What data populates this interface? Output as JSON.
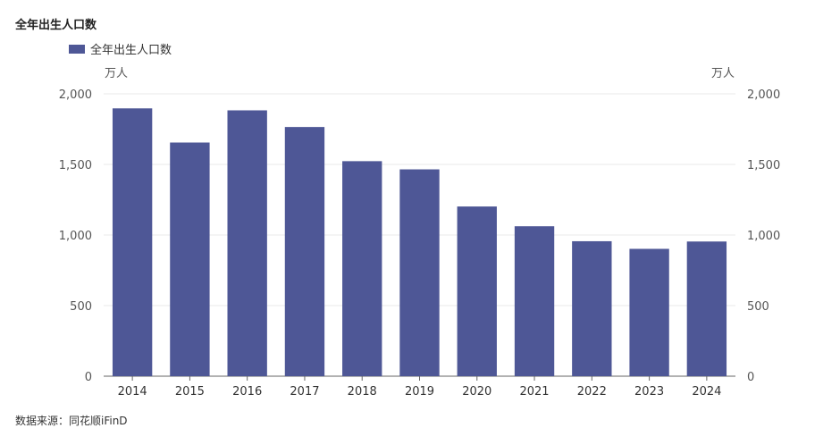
{
  "chart_data": {
    "type": "bar",
    "title": "全年出生人口数",
    "legend": [
      "全年出生人口数"
    ],
    "legend_position": "top-left",
    "y_unit_left": "万人",
    "y_unit_right": "万人",
    "categories": [
      "2014",
      "2015",
      "2016",
      "2017",
      "2018",
      "2019",
      "2020",
      "2021",
      "2022",
      "2023",
      "2024"
    ],
    "series": [
      {
        "name": "全年出生人口数",
        "values": [
          1897,
          1655,
          1883,
          1765,
          1523,
          1465,
          1202,
          1062,
          956,
          902,
          954
        ]
      }
    ],
    "ylim": [
      0,
      2000
    ],
    "yticks": [
      "0",
      "500",
      "1,000",
      "1,500",
      "2,000"
    ],
    "grid": true,
    "colors": {
      "bar": "#4e5796",
      "grid": "#e8e8e8",
      "axis": "#666666"
    }
  },
  "footer": {
    "source": "数据来源：同花顺iFinD"
  }
}
